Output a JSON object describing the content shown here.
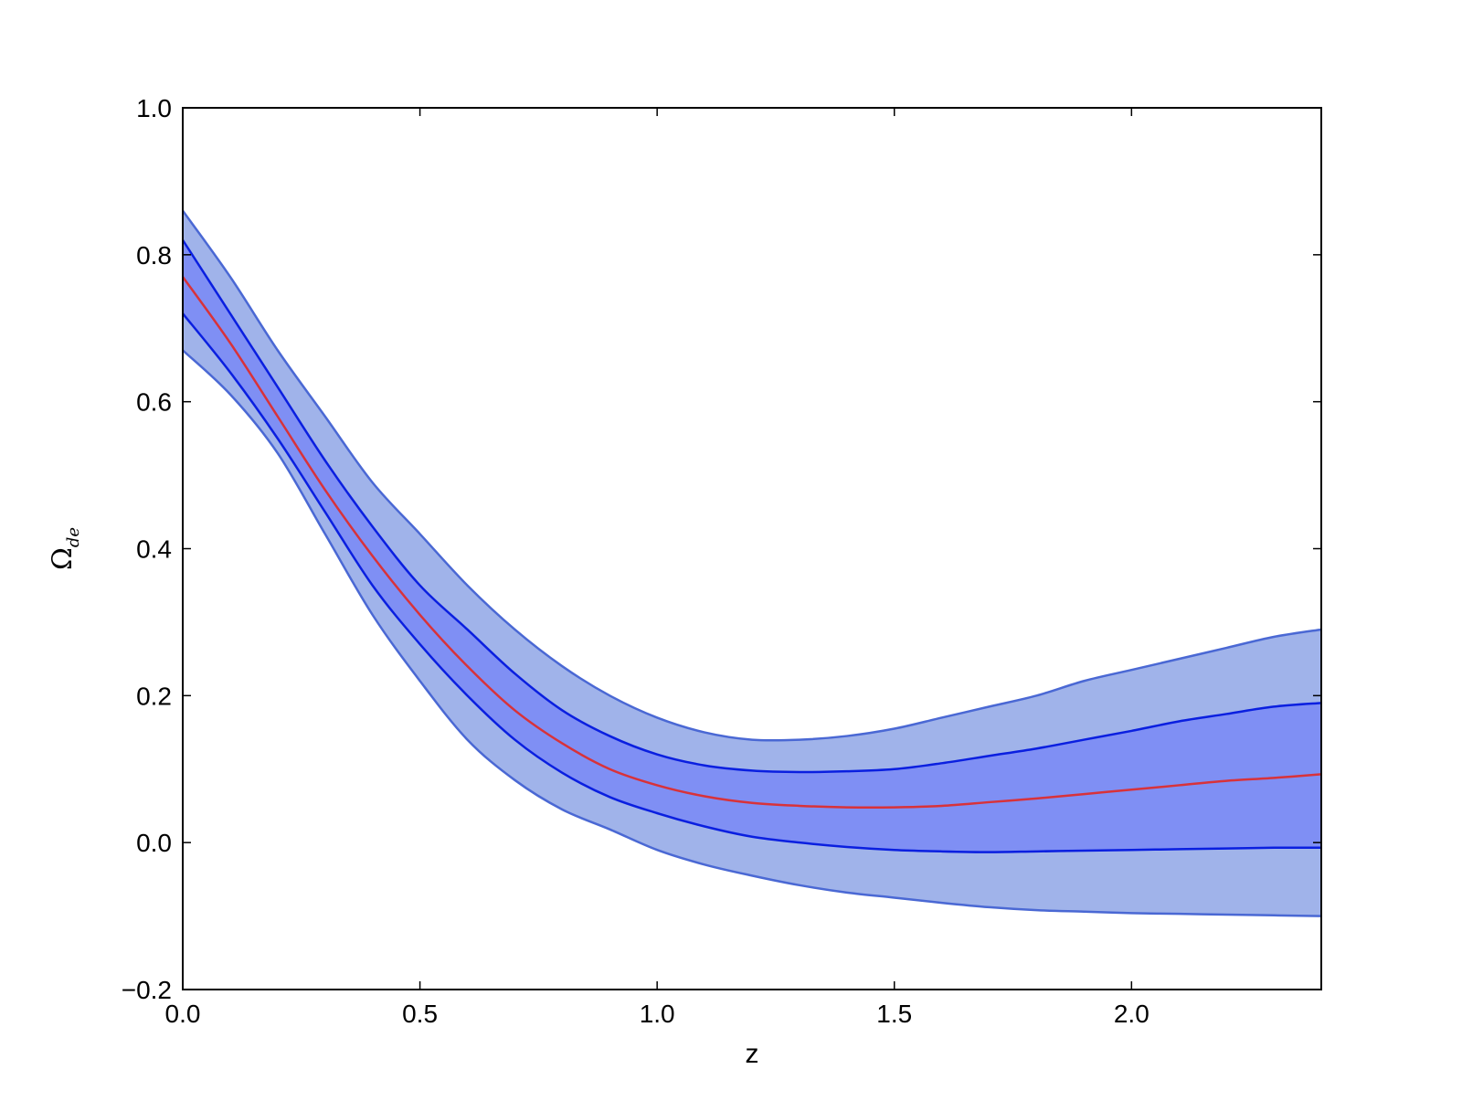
{
  "chart_data": {
    "type": "area",
    "title": "",
    "xlabel": "z",
    "ylabel": "Ω",
    "ylabel_subscript": "de",
    "xlim": [
      0.0,
      2.4
    ],
    "ylim": [
      -0.2,
      1.0
    ],
    "grid": false,
    "x_ticks": [
      0.0,
      0.5,
      1.0,
      1.5,
      2.0
    ],
    "x_tick_labels": [
      "0.0",
      "0.5",
      "1.0",
      "1.5",
      "2.0"
    ],
    "y_ticks": [
      -0.2,
      0.0,
      0.2,
      0.4,
      0.6,
      0.8,
      1.0
    ],
    "y_tick_labels": [
      "−0.2",
      "0.0",
      "0.2",
      "0.4",
      "0.6",
      "0.8",
      "1.0"
    ],
    "x": [
      0.0,
      0.1,
      0.2,
      0.3,
      0.4,
      0.5,
      0.6,
      0.7,
      0.8,
      0.9,
      1.0,
      1.1,
      1.2,
      1.3,
      1.4,
      1.5,
      1.6,
      1.7,
      1.8,
      1.9,
      2.0,
      2.1,
      2.2,
      2.3,
      2.4
    ],
    "series": [
      {
        "role": "outer_upper",
        "values": [
          0.86,
          0.77,
          0.67,
          0.58,
          0.49,
          0.42,
          0.35,
          0.29,
          0.24,
          0.2,
          0.17,
          0.15,
          0.14,
          0.14,
          0.145,
          0.155,
          0.17,
          0.185,
          0.2,
          0.22,
          0.235,
          0.25,
          0.265,
          0.28,
          0.29
        ]
      },
      {
        "role": "inner_upper",
        "values": [
          0.82,
          0.72,
          0.62,
          0.52,
          0.43,
          0.35,
          0.29,
          0.23,
          0.18,
          0.145,
          0.12,
          0.105,
          0.098,
          0.096,
          0.097,
          0.1,
          0.108,
          0.118,
          0.128,
          0.14,
          0.152,
          0.165,
          0.175,
          0.185,
          0.19
        ]
      },
      {
        "role": "median",
        "values": [
          0.77,
          0.68,
          0.58,
          0.48,
          0.39,
          0.31,
          0.24,
          0.18,
          0.135,
          0.1,
          0.078,
          0.063,
          0.054,
          0.05,
          0.048,
          0.048,
          0.05,
          0.055,
          0.06,
          0.066,
          0.072,
          0.078,
          0.084,
          0.088,
          0.093
        ]
      },
      {
        "role": "inner_lower",
        "values": [
          0.72,
          0.64,
          0.55,
          0.45,
          0.35,
          0.27,
          0.2,
          0.14,
          0.095,
          0.062,
          0.04,
          0.022,
          0.008,
          0.0,
          -0.006,
          -0.01,
          -0.012,
          -0.013,
          -0.012,
          -0.011,
          -0.01,
          -0.009,
          -0.008,
          -0.007,
          -0.007
        ]
      },
      {
        "role": "outer_lower",
        "values": [
          0.67,
          0.61,
          0.53,
          0.42,
          0.31,
          0.22,
          0.14,
          0.085,
          0.045,
          0.018,
          -0.01,
          -0.03,
          -0.045,
          -0.058,
          -0.068,
          -0.075,
          -0.082,
          -0.088,
          -0.092,
          -0.094,
          -0.096,
          -0.097,
          -0.098,
          -0.099,
          -0.1
        ]
      }
    ],
    "colors": {
      "outer_band": "#a0b3ea",
      "inner_band": "#7f8ff4",
      "outer_edge": "#4a68d4",
      "inner_line": "#0a1fe0",
      "median_line": "#d8323a",
      "frame": "#000000"
    }
  }
}
